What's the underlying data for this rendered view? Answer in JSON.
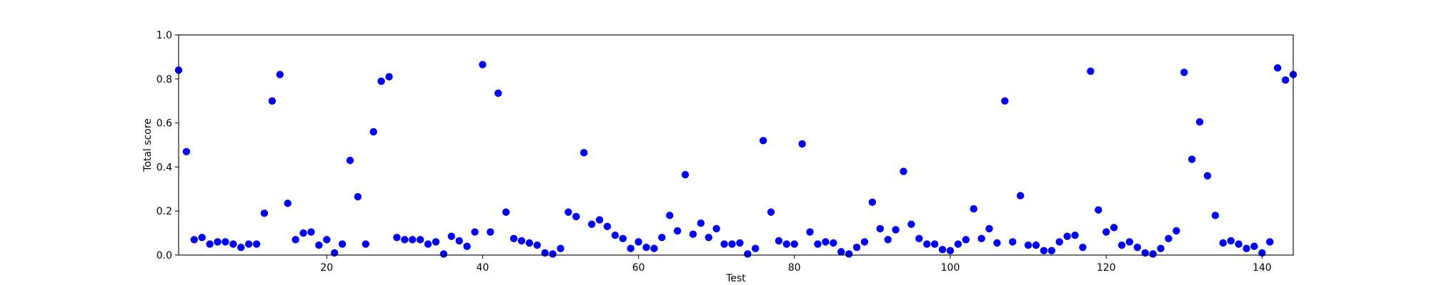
{
  "chart_data": {
    "type": "scatter",
    "title": "",
    "xlabel": "Test",
    "ylabel": "Total score",
    "xlim": [
      1,
      144
    ],
    "ylim": [
      0,
      1.0
    ],
    "x_ticks": [
      20,
      40,
      60,
      80,
      100,
      120,
      140
    ],
    "y_ticks": [
      "0.0",
      "0.2",
      "0.4",
      "0.6",
      "0.8",
      "1.0"
    ],
    "grid": false,
    "marker_color": "#0000ff",
    "series": [
      {
        "x": [
          1,
          2,
          3,
          4,
          5,
          6,
          7,
          8,
          9,
          10,
          11,
          12,
          13,
          14,
          15,
          16,
          17,
          18,
          19,
          20,
          21,
          22,
          23,
          24,
          25,
          26,
          27,
          28,
          29,
          30,
          31,
          32,
          33,
          34,
          35,
          36,
          37,
          38,
          39,
          40,
          41,
          42,
          43,
          44,
          45,
          46,
          47,
          48,
          49,
          50,
          51,
          52,
          53,
          54,
          55,
          56,
          57,
          58,
          59,
          60,
          61,
          62,
          63,
          64,
          65,
          66,
          67,
          68,
          69,
          70,
          71,
          72,
          73,
          74,
          75,
          76,
          77,
          78,
          79,
          80,
          81,
          82,
          83,
          84,
          85,
          86,
          87,
          88,
          89,
          90,
          91,
          92,
          93,
          94,
          95,
          96,
          97,
          98,
          99,
          100,
          101,
          102,
          103,
          104,
          105,
          106,
          107,
          108,
          109,
          110,
          111,
          112,
          113,
          114,
          115,
          116,
          117,
          118,
          119,
          120,
          121,
          122,
          123,
          124,
          125,
          126,
          127,
          128,
          129,
          130,
          131,
          132,
          133,
          134,
          135,
          136,
          137,
          138,
          139,
          140,
          141,
          142,
          143,
          144
        ],
        "values": [
          0.84,
          0.47,
          0.07,
          0.08,
          0.05,
          0.06,
          0.06,
          0.05,
          0.035,
          0.05,
          0.05,
          0.19,
          0.7,
          0.82,
          0.235,
          0.07,
          0.1,
          0.105,
          0.045,
          0.07,
          0.01,
          0.05,
          0.43,
          0.265,
          0.05,
          0.56,
          0.79,
          0.81,
          0.08,
          0.07,
          0.07,
          0.07,
          0.05,
          0.06,
          0.005,
          0.085,
          0.065,
          0.04,
          0.105,
          0.865,
          0.105,
          0.735,
          0.195,
          0.075,
          0.065,
          0.055,
          0.045,
          0.01,
          0.005,
          0.03,
          0.195,
          0.175,
          0.465,
          0.14,
          0.16,
          0.13,
          0.09,
          0.075,
          0.03,
          0.06,
          0.035,
          0.03,
          0.08,
          0.18,
          0.11,
          0.365,
          0.095,
          0.145,
          0.08,
          0.12,
          0.05,
          0.05,
          0.055,
          0.005,
          0.03,
          0.52,
          0.195,
          0.065,
          0.05,
          0.05,
          0.505,
          0.105,
          0.05,
          0.06,
          0.055,
          0.015,
          0.005,
          0.035,
          0.06,
          0.24,
          0.12,
          0.07,
          0.115,
          0.38,
          0.14,
          0.075,
          0.05,
          0.05,
          0.025,
          0.02,
          0.05,
          0.07,
          0.21,
          0.075,
          0.12,
          0.055,
          0.7,
          0.06,
          0.27,
          0.045,
          0.045,
          0.02,
          0.02,
          0.06,
          0.085,
          0.09,
          0.035,
          0.835,
          0.205,
          0.105,
          0.125,
          0.045,
          0.06,
          0.035,
          0.01,
          0.005,
          0.03,
          0.075,
          0.11,
          0.83,
          0.435,
          0.605,
          0.36,
          0.18,
          0.055,
          0.065,
          0.05,
          0.03,
          0.04,
          0.01,
          0.06,
          0.85,
          0.795,
          0.82
        ]
      }
    ]
  }
}
